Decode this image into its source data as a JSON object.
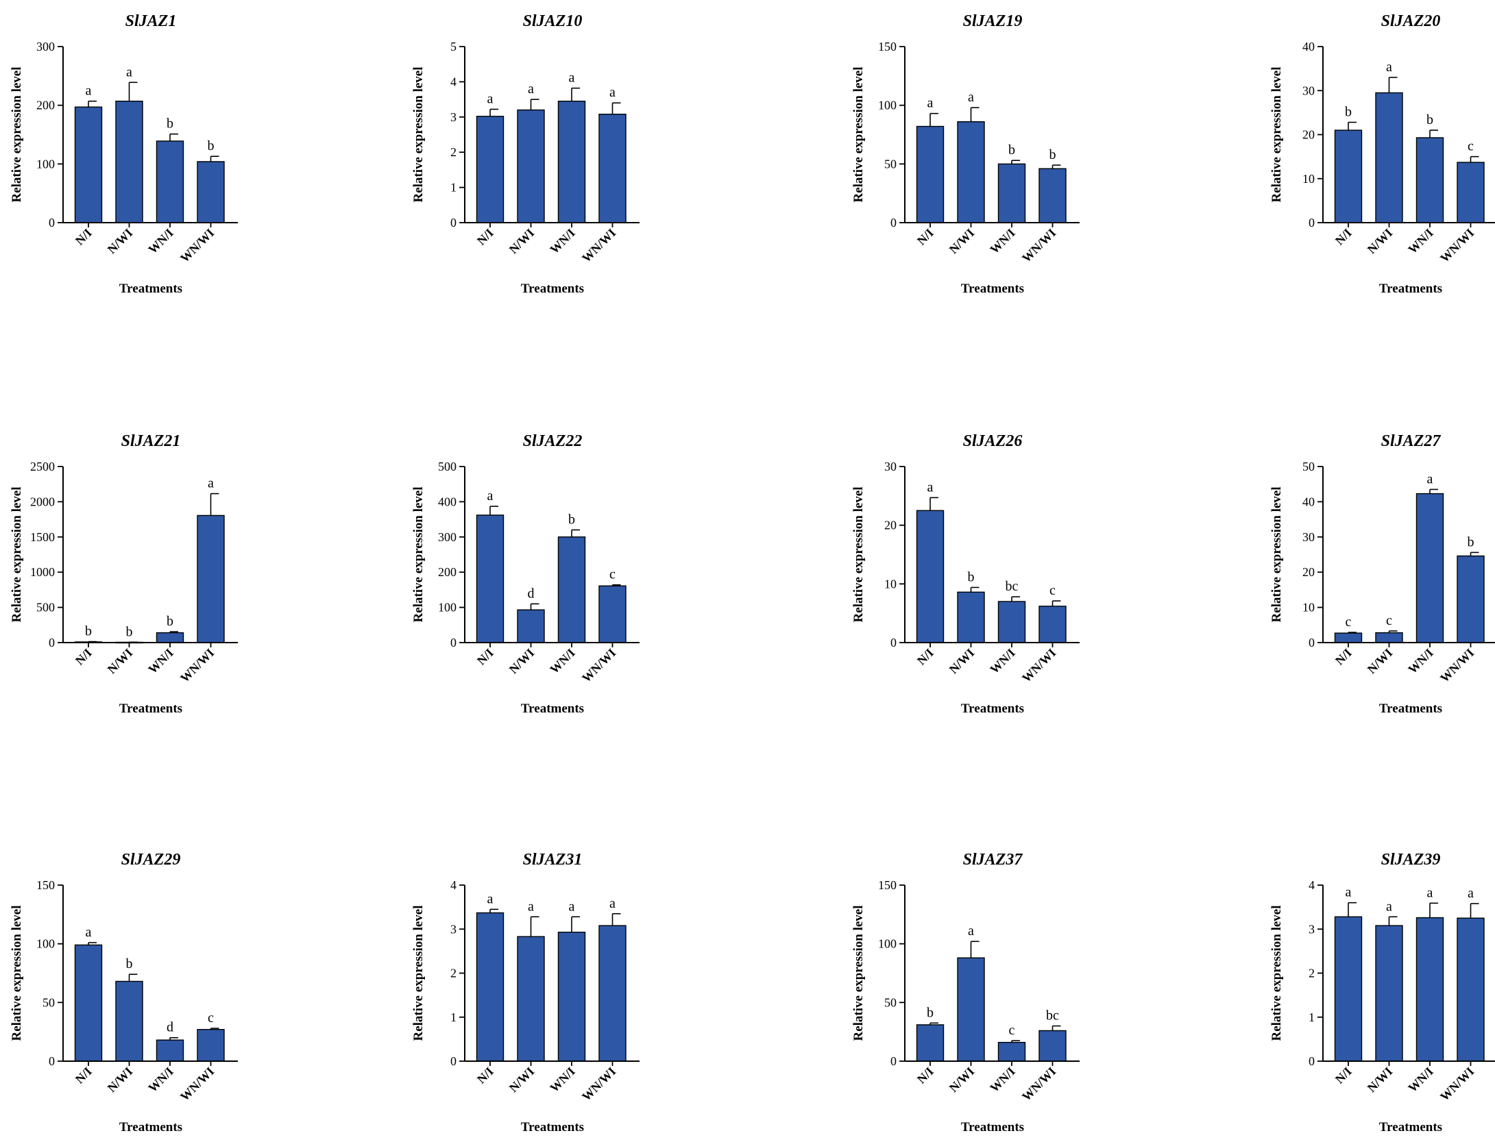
{
  "chart_data": [
    {
      "type": "bar",
      "title": "SlJAZ1",
      "ylabel": "Relative expression level",
      "xlabel": "Treatments",
      "categories": [
        "N/I",
        "N/WI",
        "WN/I",
        "WN/WI"
      ],
      "values": [
        197,
        207,
        139,
        104
      ],
      "errors": [
        10,
        32,
        12,
        9
      ],
      "letters": [
        "a",
        "a",
        "b",
        "b"
      ],
      "ylim": [
        0,
        300
      ],
      "yticks": [
        0,
        100,
        200,
        300
      ],
      "color": "#2e58a6"
    },
    {
      "type": "bar",
      "title": "SlJAZ10",
      "ylabel": "Relative expression level",
      "xlabel": "Treatments",
      "categories": [
        "N/I",
        "N/WI",
        "WN/I",
        "WN/WI"
      ],
      "values": [
        3.02,
        3.2,
        3.45,
        3.08
      ],
      "errors": [
        0.2,
        0.3,
        0.37,
        0.32
      ],
      "letters": [
        "a",
        "a",
        "a",
        "a"
      ],
      "ylim": [
        0,
        5
      ],
      "yticks": [
        0,
        1,
        2,
        3,
        4,
        5
      ],
      "color": "#2e58a6"
    },
    {
      "type": "bar",
      "title": "SlJAZ19",
      "ylabel": "Relative expression level",
      "xlabel": "Treatments",
      "categories": [
        "N/I",
        "N/WI",
        "WN/I",
        "WN/WI"
      ],
      "values": [
        82,
        86,
        50,
        46
      ],
      "errors": [
        11,
        12,
        3,
        3
      ],
      "letters": [
        "a",
        "a",
        "b",
        "b"
      ],
      "ylim": [
        0,
        150
      ],
      "yticks": [
        0,
        50,
        100,
        150
      ],
      "color": "#2e58a6"
    },
    {
      "type": "bar",
      "title": "SlJAZ20",
      "ylabel": "Relative expression level",
      "xlabel": "Treatments",
      "categories": [
        "N/I",
        "N/WI",
        "WN/I",
        "WN/WI"
      ],
      "values": [
        21,
        29.5,
        19.3,
        13.7
      ],
      "errors": [
        1.8,
        3.5,
        1.7,
        1.3
      ],
      "letters": [
        "b",
        "a",
        "b",
        "c"
      ],
      "ylim": [
        0,
        40
      ],
      "yticks": [
        0,
        10,
        20,
        30,
        40
      ],
      "color": "#2e58a6"
    },
    {
      "type": "bar",
      "title": "SlJAZ21",
      "ylabel": "Relative expression level",
      "xlabel": "Treatments",
      "categories": [
        "N/I",
        "N/WI",
        "WN/I",
        "WN/WI"
      ],
      "values": [
        10,
        5,
        140,
        1805
      ],
      "errors": [
        4,
        2,
        15,
        310
      ],
      "letters": [
        "b",
        "b",
        "b",
        "a"
      ],
      "ylim": [
        0,
        2500
      ],
      "yticks": [
        0,
        500,
        1000,
        1500,
        2000,
        2500
      ],
      "color": "#2e58a6"
    },
    {
      "type": "bar",
      "title": "SlJAZ22",
      "ylabel": "Relative expression level",
      "xlabel": "Treatments",
      "categories": [
        "N/I",
        "N/WI",
        "WN/I",
        "WN/WI"
      ],
      "values": [
        362,
        93,
        300,
        161
      ],
      "errors": [
        25,
        17,
        20,
        3
      ],
      "letters": [
        "a",
        "d",
        "b",
        "c"
      ],
      "ylim": [
        0,
        500
      ],
      "yticks": [
        0,
        100,
        200,
        300,
        400,
        500
      ],
      "color": "#2e58a6"
    },
    {
      "type": "bar",
      "title": "SlJAZ26",
      "ylabel": "Relative expression level",
      "xlabel": "Treatments",
      "categories": [
        "N/I",
        "N/WI",
        "WN/I",
        "WN/WI"
      ],
      "values": [
        22.5,
        8.6,
        7,
        6.2
      ],
      "errors": [
        2.2,
        0.8,
        0.8,
        0.9
      ],
      "letters": [
        "a",
        "b",
        "bc",
        "c"
      ],
      "ylim": [
        0,
        30
      ],
      "yticks": [
        0,
        10,
        20,
        30
      ],
      "color": "#2e58a6"
    },
    {
      "type": "bar",
      "title": "SlJAZ27",
      "ylabel": "Relative expression level",
      "xlabel": "Treatments",
      "categories": [
        "N/I",
        "N/WI",
        "WN/I",
        "WN/WI"
      ],
      "values": [
        2.7,
        2.8,
        42.3,
        24.6
      ],
      "errors": [
        0.2,
        0.5,
        1.2,
        1
      ],
      "letters": [
        "c",
        "c",
        "a",
        "b"
      ],
      "ylim": [
        0,
        50
      ],
      "yticks": [
        0,
        10,
        20,
        30,
        40,
        50
      ],
      "color": "#2e58a6"
    },
    {
      "type": "bar",
      "title": "SlJAZ29",
      "ylabel": "Relative expression level",
      "xlabel": "Treatments",
      "categories": [
        "N/I",
        "N/WI",
        "WN/I",
        "WN/WI"
      ],
      "values": [
        99,
        68,
        18,
        27
      ],
      "errors": [
        2,
        6,
        2,
        1
      ],
      "letters": [
        "a",
        "b",
        "d",
        "c"
      ],
      "ylim": [
        0,
        150
      ],
      "yticks": [
        0,
        50,
        100,
        150
      ],
      "color": "#2e58a6"
    },
    {
      "type": "bar",
      "title": "SlJAZ31",
      "ylabel": "Relative expression level",
      "xlabel": "Treatments",
      "categories": [
        "N/I",
        "N/WI",
        "WN/I",
        "WN/WI"
      ],
      "values": [
        3.37,
        2.83,
        2.93,
        3.08
      ],
      "errors": [
        0.08,
        0.45,
        0.35,
        0.27
      ],
      "letters": [
        "a",
        "a",
        "a",
        "a"
      ],
      "ylim": [
        0,
        4
      ],
      "yticks": [
        0,
        1,
        2,
        3,
        4
      ],
      "color": "#2e58a6"
    },
    {
      "type": "bar",
      "title": "SlJAZ37",
      "ylabel": "Relative expression level",
      "xlabel": "Treatments",
      "categories": [
        "N/I",
        "N/WI",
        "WN/I",
        "WN/WI"
      ],
      "values": [
        31,
        88,
        16,
        26
      ],
      "errors": [
        1.5,
        14,
        1.5,
        4
      ],
      "letters": [
        "b",
        "a",
        "c",
        "bc"
      ],
      "ylim": [
        0,
        150
      ],
      "yticks": [
        0,
        50,
        100,
        150
      ],
      "color": "#2e58a6"
    },
    {
      "type": "bar",
      "title": "SlJAZ39",
      "ylabel": "Relative expression level",
      "xlabel": "Treatments",
      "categories": [
        "N/I",
        "N/WI",
        "WN/I",
        "WN/WI"
      ],
      "values": [
        3.28,
        3.08,
        3.26,
        3.25
      ],
      "errors": [
        0.32,
        0.2,
        0.33,
        0.33
      ],
      "letters": [
        "a",
        "a",
        "a",
        "a"
      ],
      "ylim": [
        0,
        4
      ],
      "yticks": [
        0,
        1,
        2,
        3,
        4
      ],
      "color": "#2e58a6"
    }
  ]
}
